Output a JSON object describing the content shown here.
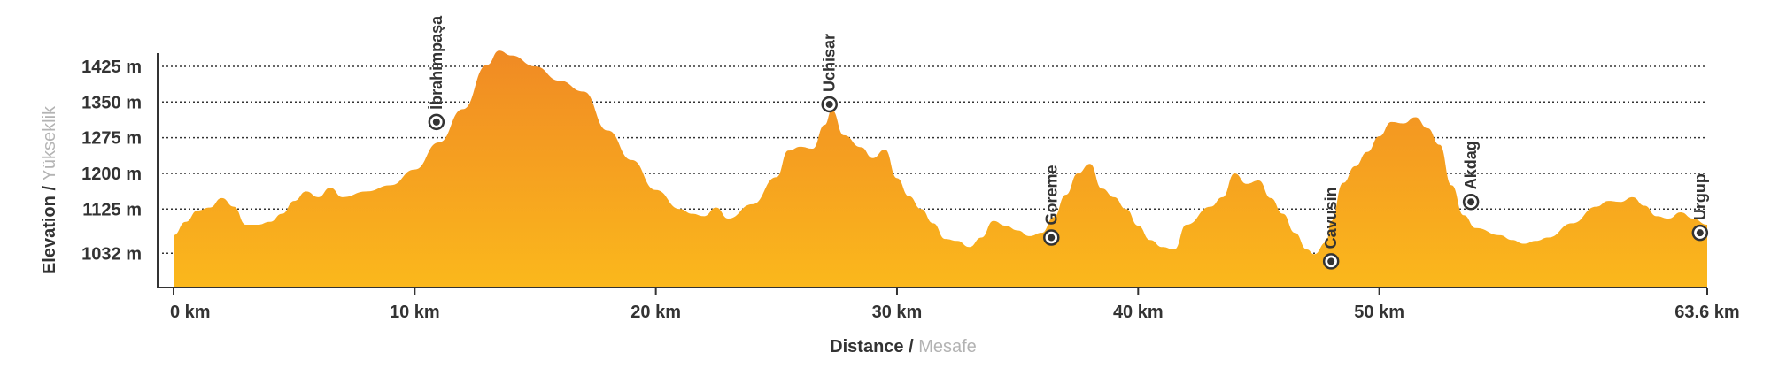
{
  "chart_data": {
    "type": "area",
    "ylabel": {
      "main": "Elevation",
      "separator": " / ",
      "alt": "Yükseklik"
    },
    "xlabel": {
      "main": "Distance",
      "separator": " / ",
      "alt": "Mesafe"
    },
    "x_ticks": [
      {
        "value": 0,
        "label": "0 km"
      },
      {
        "value": 10,
        "label": "10 km"
      },
      {
        "value": 20,
        "label": "20 km"
      },
      {
        "value": 30,
        "label": "30 km"
      },
      {
        "value": 40,
        "label": "40 km"
      },
      {
        "value": 50,
        "label": "50 km"
      },
      {
        "value": 63.6,
        "label": "63.6 km"
      }
    ],
    "y_ticks": [
      {
        "value": 1032,
        "label": "1032 m"
      },
      {
        "value": 1125,
        "label": "1125 m"
      },
      {
        "value": 1200,
        "label": "1200 m"
      },
      {
        "value": 1275,
        "label": "1275 m"
      },
      {
        "value": 1350,
        "label": "1350 m"
      },
      {
        "value": 1425,
        "label": "1425 m"
      }
    ],
    "xlim": [
      0,
      63.6
    ],
    "ylim": [
      960,
      1490
    ],
    "grid": "horizontal dotted",
    "colors": {
      "fill_top": "#f08a24",
      "fill_bottom": "#fbb81c",
      "grid": "#333333",
      "axis": "#333333",
      "marker_ring": "#333333"
    },
    "profile": [
      [
        0,
        1070
      ],
      [
        0.5,
        1098
      ],
      [
        1.0,
        1122
      ],
      [
        1.5,
        1128
      ],
      [
        2.0,
        1148
      ],
      [
        2.5,
        1130
      ],
      [
        3.0,
        1092
      ],
      [
        3.5,
        1092
      ],
      [
        4.0,
        1098
      ],
      [
        4.5,
        1115
      ],
      [
        5.0,
        1142
      ],
      [
        5.5,
        1162
      ],
      [
        6.0,
        1150
      ],
      [
        6.5,
        1170
      ],
      [
        7.0,
        1150
      ],
      [
        8.0,
        1162
      ],
      [
        9.0,
        1175
      ],
      [
        10.0,
        1208
      ],
      [
        11.0,
        1265
      ],
      [
        12.0,
        1335
      ],
      [
        13.0,
        1428
      ],
      [
        13.5,
        1458
      ],
      [
        14.0,
        1448
      ],
      [
        15.0,
        1425
      ],
      [
        16.0,
        1395
      ],
      [
        17.0,
        1372
      ],
      [
        18.0,
        1290
      ],
      [
        19.0,
        1228
      ],
      [
        20.0,
        1165
      ],
      [
        21.0,
        1125
      ],
      [
        21.5,
        1115
      ],
      [
        22.0,
        1110
      ],
      [
        22.5,
        1128
      ],
      [
        23.0,
        1105
      ],
      [
        24.0,
        1135
      ],
      [
        25.0,
        1192
      ],
      [
        25.5,
        1248
      ],
      [
        26.0,
        1256
      ],
      [
        26.5,
        1252
      ],
      [
        27.0,
        1302
      ],
      [
        27.3,
        1333
      ],
      [
        27.8,
        1280
      ],
      [
        28.5,
        1255
      ],
      [
        29.0,
        1232
      ],
      [
        29.5,
        1250
      ],
      [
        30.0,
        1190
      ],
      [
        30.5,
        1152
      ],
      [
        31.0,
        1125
      ],
      [
        31.5,
        1095
      ],
      [
        32.0,
        1062
      ],
      [
        32.5,
        1058
      ],
      [
        33.0,
        1045
      ],
      [
        33.5,
        1065
      ],
      [
        34.0,
        1100
      ],
      [
        34.5,
        1090
      ],
      [
        35.0,
        1080
      ],
      [
        35.5,
        1068
      ],
      [
        36.0,
        1075
      ],
      [
        36.5,
        1108
      ],
      [
        37.0,
        1155
      ],
      [
        37.5,
        1200
      ],
      [
        38.0,
        1220
      ],
      [
        38.5,
        1168
      ],
      [
        39.0,
        1150
      ],
      [
        39.5,
        1125
      ],
      [
        40.0,
        1090
      ],
      [
        40.5,
        1060
      ],
      [
        41.0,
        1045
      ],
      [
        41.5,
        1040
      ],
      [
        42.0,
        1092
      ],
      [
        43.0,
        1130
      ],
      [
        43.5,
        1150
      ],
      [
        44.0,
        1200
      ],
      [
        44.5,
        1178
      ],
      [
        45.0,
        1185
      ],
      [
        45.5,
        1148
      ],
      [
        46.0,
        1115
      ],
      [
        46.5,
        1075
      ],
      [
        47.0,
        1040
      ],
      [
        47.3,
        1030
      ],
      [
        47.8,
        1055
      ],
      [
        48.0,
        1100
      ],
      [
        48.5,
        1180
      ],
      [
        49.0,
        1215
      ],
      [
        49.5,
        1245
      ],
      [
        50.0,
        1278
      ],
      [
        50.5,
        1308
      ],
      [
        51.0,
        1305
      ],
      [
        51.5,
        1318
      ],
      [
        52.0,
        1295
      ],
      [
        52.5,
        1260
      ],
      [
        53.0,
        1175
      ],
      [
        53.5,
        1112
      ],
      [
        54.0,
        1085
      ],
      [
        55.0,
        1070
      ],
      [
        55.5,
        1060
      ],
      [
        56.0,
        1052
      ],
      [
        56.5,
        1058
      ],
      [
        57.0,
        1065
      ],
      [
        58.0,
        1095
      ],
      [
        59.0,
        1130
      ],
      [
        59.5,
        1142
      ],
      [
        60.0,
        1140
      ],
      [
        60.5,
        1150
      ],
      [
        61.0,
        1132
      ],
      [
        61.5,
        1110
      ],
      [
        62.0,
        1105
      ],
      [
        62.5,
        1118
      ],
      [
        63.0,
        1105
      ],
      [
        63.6,
        1092
      ]
    ],
    "waypoints": [
      {
        "name": "İbrahimpaşa",
        "x": 10.9,
        "y": 1308
      },
      {
        "name": "Uchisar",
        "x": 27.2,
        "y": 1345
      },
      {
        "name": "Goreme",
        "x": 36.4,
        "y": 1065
      },
      {
        "name": "Cavusin",
        "x": 48.0,
        "y": 1015
      },
      {
        "name": "Akdag",
        "x": 53.8,
        "y": 1140
      },
      {
        "name": "Urgup",
        "x": 63.3,
        "y": 1075
      }
    ]
  }
}
